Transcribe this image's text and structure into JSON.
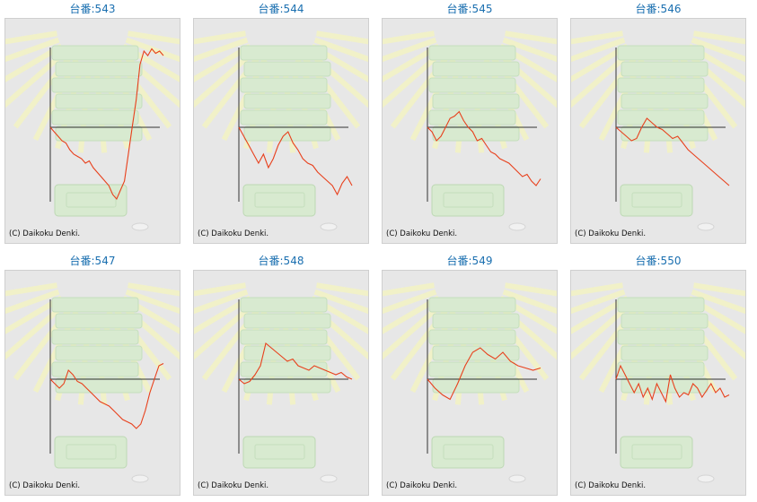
{
  "colors": {
    "title": "#1a6fb0",
    "panel_bg": "#e7e7e7",
    "line": "#e8401c",
    "axis": "#333333"
  },
  "copyright": "(C) Daikoku Denki.",
  "machines": [
    {
      "label": "台番:543",
      "chart_data": {
        "type": "line",
        "values": [
          0,
          -10,
          -20,
          -30,
          -35,
          -50,
          -60,
          -65,
          -70,
          -80,
          -75,
          -90,
          -100,
          -110,
          -120,
          -130,
          -150,
          -160,
          -140,
          -120,
          -60,
          0,
          60,
          140,
          170,
          160,
          175,
          165,
          170,
          160
        ]
      }
    },
    {
      "label": "台番:544",
      "chart_data": {
        "type": "line",
        "values": [
          0,
          -20,
          -40,
          -60,
          -80,
          -60,
          -90,
          -70,
          -40,
          -20,
          -10,
          -35,
          -50,
          -70,
          -80,
          -85,
          -100,
          -110,
          -120,
          -130,
          -150,
          -125,
          -110,
          -130
        ]
      }
    },
    {
      "label": "台番:545",
      "chart_data": {
        "type": "line",
        "values": [
          0,
          -10,
          -30,
          -20,
          0,
          20,
          25,
          35,
          15,
          0,
          -10,
          -30,
          -25,
          -40,
          -55,
          -60,
          -70,
          -75,
          -80,
          -90,
          -100,
          -110,
          -105,
          -120,
          -130,
          -115
        ]
      }
    },
    {
      "label": "台番:546",
      "chart_data": {
        "type": "line",
        "values": [
          0,
          -10,
          -20,
          -30,
          -25,
          0,
          20,
          10,
          0,
          -5,
          -15,
          -25,
          -20,
          -35,
          -50,
          -60,
          -70,
          -80,
          -90,
          -100,
          -110,
          -120,
          -130
        ]
      }
    },
    {
      "label": "台番:547",
      "chart_data": {
        "type": "line",
        "values": [
          0,
          -10,
          -20,
          -10,
          20,
          10,
          -5,
          -10,
          -20,
          -30,
          -40,
          -50,
          -55,
          -60,
          -70,
          -80,
          -90,
          -95,
          -100,
          -110,
          -100,
          -70,
          -30,
          0,
          30,
          35
        ]
      }
    },
    {
      "label": "台番:548",
      "chart_data": {
        "type": "line",
        "values": [
          0,
          -10,
          -5,
          10,
          30,
          80,
          70,
          60,
          50,
          40,
          45,
          30,
          25,
          20,
          30,
          25,
          20,
          15,
          10,
          15,
          5,
          0
        ]
      }
    },
    {
      "label": "台番:549",
      "chart_data": {
        "type": "line",
        "values": [
          0,
          -20,
          -35,
          -45,
          -10,
          30,
          60,
          70,
          55,
          45,
          60,
          40,
          30,
          25,
          20,
          25
        ]
      }
    },
    {
      "label": "台番:550",
      "chart_data": {
        "type": "line",
        "values": [
          0,
          30,
          10,
          -10,
          -30,
          -10,
          -40,
          -20,
          -45,
          -10,
          -30,
          -50,
          10,
          -20,
          -40,
          -30,
          -35,
          -10,
          -20,
          -40,
          -25,
          -10,
          -30,
          -20,
          -40,
          -35
        ]
      }
    }
  ]
}
